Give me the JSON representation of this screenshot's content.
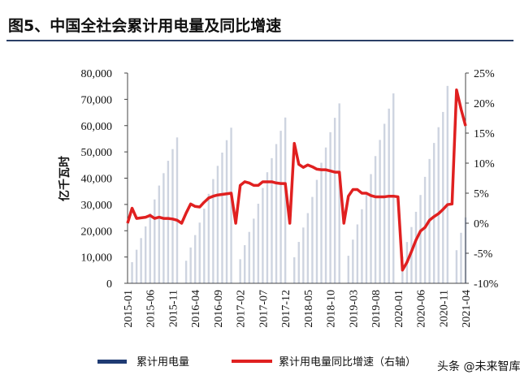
{
  "chart_data": {
    "type": "bar-line",
    "title": "图5、中国全社会累计用电量及同比增速",
    "y_label": "亿千瓦时",
    "categories": [
      "2015-01",
      null,
      null,
      null,
      null,
      "2015-06",
      null,
      null,
      null,
      null,
      "2015-11",
      null,
      null,
      null,
      null,
      "2016-04",
      null,
      null,
      null,
      null,
      "2016-09",
      null,
      null,
      null,
      null,
      "2017-02",
      null,
      null,
      null,
      null,
      "2017-07",
      null,
      null,
      null,
      null,
      "2017-12",
      null,
      null,
      null,
      null,
      "2018-05",
      null,
      null,
      null,
      null,
      "2018-10",
      null,
      null,
      null,
      null,
      "2019-03",
      null,
      null,
      null,
      null,
      "2019-08",
      null,
      null,
      null,
      null,
      "2020-01",
      null,
      null,
      null,
      null,
      "2020-06",
      null,
      null,
      null,
      null,
      "2020-11",
      null,
      null,
      null,
      null,
      "2021-04"
    ],
    "series": [
      {
        "name": "累计用电量",
        "type": "bar",
        "color": "#1f3b73",
        "values": [
          0,
          8050,
          12770,
          17200,
          21650,
          26640,
          31910,
          37190,
          41900,
          46620,
          51060,
          55500,
          0,
          8580,
          13620,
          18350,
          23090,
          28420,
          34040,
          39660,
          44690,
          49730,
          54460,
          59200,
          0,
          9150,
          14510,
          19550,
          24600,
          30280,
          36270,
          42260,
          47620,
          52980,
          58030,
          63080,
          0,
          9920,
          15740,
          21220,
          26700,
          32860,
          39360,
          45860,
          51680,
          57500,
          62970,
          68450,
          0,
          10480,
          16620,
          22400,
          28180,
          34680,
          41550,
          48410,
          54550,
          60690,
          66470,
          72260,
          0,
          10190,
          15700,
          21400,
          27200,
          33600,
          40500,
          47300,
          53400,
          59400,
          65200,
          75110,
          0,
          12590,
          19220,
          25060
        ]
      },
      {
        "name": "累计用电量同比增速（右轴）",
        "type": "line",
        "axis": "y2",
        "color": "#e02020",
        "values": [
          0,
          2.5,
          0.8,
          0.9,
          1.0,
          1.3,
          0.8,
          1.0,
          0.8,
          0.8,
          0.7,
          0.5,
          0,
          1.7,
          3.2,
          2.8,
          2.7,
          3.5,
          4.2,
          4.5,
          4.7,
          4.8,
          4.9,
          5.0,
          0,
          6.3,
          6.9,
          6.7,
          6.3,
          6.3,
          6.9,
          6.9,
          6.9,
          6.7,
          6.6,
          6.6,
          0,
          13.3,
          9.8,
          9.3,
          9.7,
          9.4,
          9.0,
          8.9,
          8.9,
          8.7,
          8.5,
          8.5,
          0,
          4.5,
          5.6,
          5.6,
          5.0,
          5.0,
          4.6,
          4.4,
          4.4,
          4.4,
          4.5,
          4.5,
          4.4,
          -7.8,
          -6.5,
          -4.7,
          -2.8,
          -1.3,
          -0.7,
          0.5,
          1.1,
          1.6,
          2.3,
          3.1,
          3.2,
          22.2,
          19.0,
          16.2
        ]
      }
    ],
    "ylim": [
      0,
      80000
    ],
    "yticks": [
      0,
      {
        "value": 10000,
        "label": "10,000"
      },
      {
        "value": 20000,
        "label": "20,000"
      },
      {
        "value": 30000,
        "label": "30,000"
      },
      {
        "value": 40000,
        "label": "40,000"
      },
      {
        "value": 50000,
        "label": "50,000"
      },
      {
        "value": 60000,
        "label": "60,000"
      },
      {
        "value": 70000,
        "label": "70,000"
      },
      {
        "value": 80000,
        "label": "80,000"
      }
    ],
    "y2lim": [
      -10,
      25
    ],
    "y2ticks": [
      {
        "value": -10,
        "label": "-10%"
      },
      {
        "value": -5,
        "label": "-5%"
      },
      {
        "value": 0,
        "label": "0%"
      },
      {
        "value": 5,
        "label": "5%"
      },
      {
        "value": 10,
        "label": "10%"
      },
      {
        "value": 15,
        "label": "15%"
      },
      {
        "value": 20,
        "label": "20%"
      },
      {
        "value": 25,
        "label": "25%"
      }
    ],
    "watermark": "头条 @未来智库"
  }
}
